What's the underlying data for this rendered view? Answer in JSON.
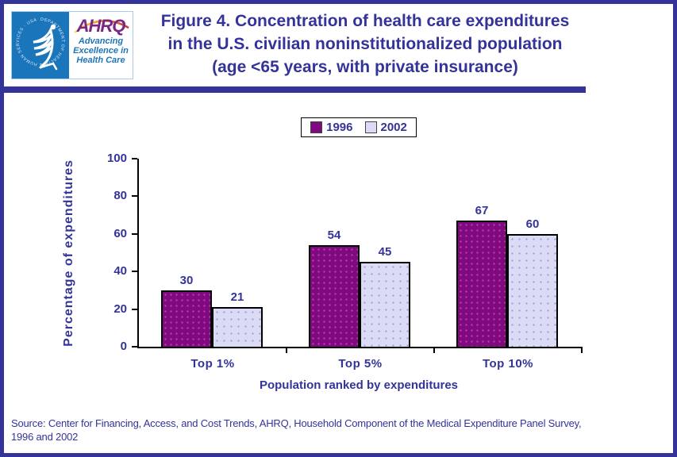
{
  "header": {
    "logo": {
      "hhs_seal_label": "DEPARTMENT OF HEALTH & HUMAN SERVICES · USA",
      "ahrq_acronym": "AHRQ",
      "tagline_lines": [
        "Advancing",
        "Excellence in",
        "Health Care"
      ]
    },
    "title_lines": [
      "Figure 4. Concentration of health care expenditures",
      "in the U.S. civilian noninstitutionalized population",
      "(age <65 years, with private insurance)"
    ]
  },
  "chart_data": {
    "type": "bar",
    "categories": [
      "Top 1%",
      "Top 5%",
      "Top 10%"
    ],
    "series": [
      {
        "name": "1996",
        "values": [
          30,
          54,
          67
        ],
        "color": "#7e0a7e"
      },
      {
        "name": "2002",
        "values": [
          21,
          45,
          60
        ],
        "color": "#dbdbf6"
      }
    ],
    "title": "Figure 4. Concentration of health care expenditures in the U.S. civilian noninstitutionalized population (age <65 years, with private insurance)",
    "xlabel": "Population ranked by expenditures",
    "ylabel": "Percentage of expenditures",
    "ylim": [
      0,
      100
    ],
    "yticks": [
      0,
      20,
      40,
      60,
      80,
      100
    ],
    "legend_position": "top-center",
    "grid": false,
    "bar_labels": true
  },
  "source": {
    "lines": [
      "Source: Center for Financing, Access, and Cost Trends, AHRQ, Household Component of the Medical Expenditure Panel Survey,",
      "1996 and 2002"
    ]
  },
  "colors": {
    "accent_blue": "#333399",
    "series_1996": "#7e0a7e",
    "series_2002": "#dbdbf6",
    "hhs_blue": "#1b75bb",
    "ahrq_purple": "#7b2682"
  }
}
